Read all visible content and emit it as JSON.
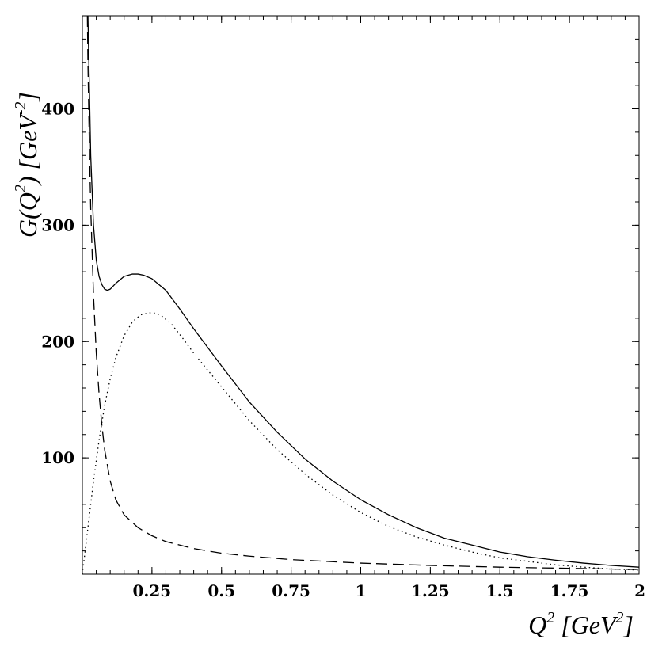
{
  "chart_data": {
    "type": "line",
    "xlabel": {
      "main": "Q",
      "sup": "2",
      "units_open": " [GeV",
      "units_sup": "2",
      "units_close": "]"
    },
    "ylabel": {
      "main": "G(Q",
      "sup": "2",
      "mid": ") [GeV",
      "units_sup": "-2",
      "units_close": "]"
    },
    "xlim": [
      0,
      2
    ],
    "ylim": [
      0,
      480
    ],
    "x_ticks": [
      {
        "value": 0.25,
        "label": "0.25"
      },
      {
        "value": 0.5,
        "label": "0.5"
      },
      {
        "value": 0.75,
        "label": "0.75"
      },
      {
        "value": 1,
        "label": "1"
      },
      {
        "value": 1.25,
        "label": "1.25"
      },
      {
        "value": 1.5,
        "label": "1.5"
      },
      {
        "value": 1.75,
        "label": "1.75"
      },
      {
        "value": 2,
        "label": "2"
      }
    ],
    "y_ticks": [
      {
        "value": 100,
        "label": "100"
      },
      {
        "value": 200,
        "label": "200"
      },
      {
        "value": 300,
        "label": "300"
      },
      {
        "value": 400,
        "label": "400"
      }
    ],
    "grid": false,
    "series": [
      {
        "style": "solid",
        "color": "#000000",
        "x": [
          0.02,
          0.025,
          0.03,
          0.04,
          0.05,
          0.06,
          0.07,
          0.08,
          0.09,
          0.1,
          0.12,
          0.15,
          0.18,
          0.2,
          0.22,
          0.25,
          0.3,
          0.35,
          0.4,
          0.5,
          0.6,
          0.7,
          0.8,
          0.9,
          1.0,
          1.1,
          1.2,
          1.3,
          1.4,
          1.5,
          1.6,
          1.7,
          1.8,
          1.9,
          2.0
        ],
        "y": [
          480,
          420,
          360,
          300,
          270,
          256,
          249,
          245,
          244,
          245,
          250,
          256,
          258,
          258,
          257,
          254,
          244,
          228,
          211,
          179,
          148,
          122,
          99,
          80,
          64,
          51,
          40,
          31,
          25,
          19,
          15,
          12,
          9.5,
          7.5,
          6
        ]
      },
      {
        "style": "dotted",
        "color": "#000000",
        "x": [
          0.0,
          0.02,
          0.04,
          0.06,
          0.08,
          0.1,
          0.12,
          0.15,
          0.18,
          0.21,
          0.25,
          0.28,
          0.32,
          0.36,
          0.4,
          0.5,
          0.6,
          0.7,
          0.8,
          0.9,
          1.0,
          1.1,
          1.2,
          1.3,
          1.4,
          1.5,
          1.6,
          1.7,
          1.8,
          1.9,
          2.0
        ],
        "y": [
          0,
          40,
          80,
          115,
          145,
          168,
          186,
          205,
          217,
          223,
          225,
          223,
          215,
          203,
          190,
          161,
          132,
          107,
          86,
          68,
          53,
          41,
          32,
          25,
          19,
          14,
          11,
          8,
          6,
          4.5,
          3.5
        ]
      },
      {
        "style": "dashed",
        "color": "#000000",
        "x": [
          0.018,
          0.02,
          0.025,
          0.03,
          0.04,
          0.05,
          0.06,
          0.07,
          0.08,
          0.1,
          0.12,
          0.15,
          0.2,
          0.25,
          0.3,
          0.4,
          0.5,
          0.6,
          0.75,
          1.0,
          1.25,
          1.5,
          1.75,
          2.0
        ],
        "y": [
          480,
          440,
          370,
          315,
          240,
          190,
          155,
          128,
          107,
          80,
          64,
          51,
          40,
          33,
          28,
          22,
          18,
          15.5,
          12.5,
          9.5,
          7.5,
          6,
          5,
          4
        ]
      }
    ]
  }
}
